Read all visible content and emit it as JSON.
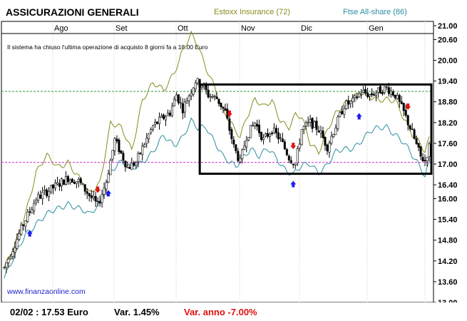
{
  "chart_data": {
    "type": "candlestick",
    "title": "ASSICURAZIONI GENERALI",
    "legend": [
      {
        "name": "Estoxx Insurance (72)",
        "color": "#8a8a1e"
      },
      {
        "name": "Ftse All-share (86)",
        "color": "#2b8ea0"
      }
    ],
    "note": "Il sistema ha chiuso l'ultima operazione di acquisto 8 giorni fa a 18.00 Euro",
    "watermark": "www.finanzaonline.com",
    "y_ticks": [
      "21.00",
      "20.60",
      "20.00",
      "19.40",
      "18.80",
      "18.20",
      "17.60",
      "17.00",
      "16.40",
      "16.00",
      "15.40",
      "14.80",
      "14.20",
      "13.60",
      "13.00"
    ],
    "ylim": [
      13.0,
      21.0
    ],
    "months": [
      "Ago",
      "Set",
      "Ott",
      "Nov",
      "Dic",
      "Gen"
    ],
    "reference_lines": [
      {
        "value": 19.1,
        "color": "#2f9a2f"
      },
      {
        "value": 17.05,
        "color": "#d12ad1"
      }
    ],
    "highlight_box": {
      "from_day": 92,
      "to_day": 200,
      "low": 16.72,
      "high": 19.3
    },
    "markers": [
      {
        "day": 12,
        "dir": "up",
        "color": "#1d1df0"
      },
      {
        "day": 44,
        "dir": "down",
        "color": "#e01010"
      },
      {
        "day": 49,
        "dir": "up",
        "color": "#1d1df0"
      },
      {
        "day": 106,
        "dir": "down",
        "color": "#e01010"
      },
      {
        "day": 136,
        "dir": "down",
        "color": "#e01010"
      },
      {
        "day": 136,
        "dir": "up",
        "color": "#1d1df0"
      },
      {
        "day": 167,
        "dir": "up",
        "color": "#1d1df0"
      },
      {
        "day": 190,
        "dir": "down",
        "color": "#e01010"
      }
    ],
    "price_keys": [
      [
        0,
        14.0
      ],
      [
        5,
        14.7
      ],
      [
        10,
        15.4
      ],
      [
        15,
        16.0
      ],
      [
        20,
        16.2
      ],
      [
        25,
        16.4
      ],
      [
        30,
        16.6
      ],
      [
        35,
        16.5
      ],
      [
        40,
        16.1
      ],
      [
        44,
        15.8
      ],
      [
        48,
        16.5
      ],
      [
        52,
        17.7
      ],
      [
        55,
        17.3
      ],
      [
        58,
        16.9
      ],
      [
        62,
        17.05
      ],
      [
        66,
        17.6
      ],
      [
        70,
        18.1
      ],
      [
        74,
        18.3
      ],
      [
        78,
        18.5
      ],
      [
        81,
        19.0
      ],
      [
        84,
        18.6
      ],
      [
        87,
        19.0
      ],
      [
        90,
        19.4
      ],
      [
        93,
        19.3
      ],
      [
        96,
        19.0
      ],
      [
        100,
        18.9
      ],
      [
        104,
        18.5
      ],
      [
        108,
        17.5
      ],
      [
        111,
        17.05
      ],
      [
        114,
        17.8
      ],
      [
        118,
        18.2
      ],
      [
        122,
        17.7
      ],
      [
        126,
        18.0
      ],
      [
        130,
        17.7
      ],
      [
        134,
        17.2
      ],
      [
        137,
        17.0
      ],
      [
        140,
        18.0
      ],
      [
        144,
        18.2
      ],
      [
        148,
        18.0
      ],
      [
        152,
        17.5
      ],
      [
        156,
        18.1
      ],
      [
        160,
        18.7
      ],
      [
        164,
        18.8
      ],
      [
        168,
        19.1
      ],
      [
        172,
        19.0
      ],
      [
        176,
        19.1
      ],
      [
        180,
        19.2
      ],
      [
        184,
        19.0
      ],
      [
        188,
        18.5
      ],
      [
        192,
        17.9
      ],
      [
        196,
        17.2
      ],
      [
        198,
        17.1
      ],
      [
        200,
        17.5
      ]
    ],
    "estoxx_keys": [
      [
        0,
        14.0
      ],
      [
        5,
        14.6
      ],
      [
        10,
        15.6
      ],
      [
        15,
        16.8
      ],
      [
        20,
        17.2
      ],
      [
        25,
        16.9
      ],
      [
        30,
        17.1
      ],
      [
        35,
        16.6
      ],
      [
        40,
        16.1
      ],
      [
        45,
        16.5
      ],
      [
        50,
        18.2
      ],
      [
        55,
        18.0
      ],
      [
        60,
        17.4
      ],
      [
        65,
        18.9
      ],
      [
        70,
        19.3
      ],
      [
        75,
        19.1
      ],
      [
        80,
        19.7
      ],
      [
        84,
        20.3
      ],
      [
        88,
        20.7
      ],
      [
        91,
        20.4
      ],
      [
        95,
        19.8
      ],
      [
        99,
        19.3
      ],
      [
        103,
        18.5
      ],
      [
        108,
        18.0
      ],
      [
        111,
        17.8
      ],
      [
        114,
        18.4
      ],
      [
        118,
        18.9
      ],
      [
        122,
        18.6
      ],
      [
        126,
        18.8
      ],
      [
        130,
        18.3
      ],
      [
        134,
        18.1
      ],
      [
        137,
        18.4
      ],
      [
        140,
        18.3
      ],
      [
        144,
        17.6
      ],
      [
        148,
        17.4
      ],
      [
        152,
        18.0
      ],
      [
        156,
        18.4
      ],
      [
        160,
        18.7
      ],
      [
        164,
        19.0
      ],
      [
        168,
        19.1
      ],
      [
        172,
        18.9
      ],
      [
        176,
        18.8
      ],
      [
        180,
        18.9
      ],
      [
        184,
        18.9
      ],
      [
        188,
        18.3
      ],
      [
        192,
        17.8
      ],
      [
        196,
        17.6
      ],
      [
        198,
        17.4
      ],
      [
        200,
        17.8
      ]
    ],
    "ftse_keys": [
      [
        0,
        13.7
      ],
      [
        5,
        14.3
      ],
      [
        10,
        15.0
      ],
      [
        15,
        15.3
      ],
      [
        20,
        15.5
      ],
      [
        25,
        15.7
      ],
      [
        30,
        15.9
      ],
      [
        35,
        15.7
      ],
      [
        40,
        15.5
      ],
      [
        45,
        15.9
      ],
      [
        50,
        16.8
      ],
      [
        55,
        17.0
      ],
      [
        60,
        16.9
      ],
      [
        65,
        17.1
      ],
      [
        70,
        17.3
      ],
      [
        75,
        17.8
      ],
      [
        80,
        17.6
      ],
      [
        84,
        17.8
      ],
      [
        88,
        18.2
      ],
      [
        91,
        18.0
      ],
      [
        95,
        18.1
      ],
      [
        99,
        17.7
      ],
      [
        103,
        17.2
      ],
      [
        106,
        17.0
      ],
      [
        109,
        16.9
      ],
      [
        112,
        17.2
      ],
      [
        116,
        17.5
      ],
      [
        120,
        17.2
      ],
      [
        124,
        17.4
      ],
      [
        128,
        17.2
      ],
      [
        132,
        16.9
      ],
      [
        136,
        16.7
      ],
      [
        140,
        16.9
      ],
      [
        144,
        17.0
      ],
      [
        148,
        16.8
      ],
      [
        152,
        17.0
      ],
      [
        156,
        17.3
      ],
      [
        160,
        17.4
      ],
      [
        164,
        17.5
      ],
      [
        168,
        17.7
      ],
      [
        172,
        17.9
      ],
      [
        176,
        18.0
      ],
      [
        180,
        18.1
      ],
      [
        184,
        17.9
      ],
      [
        188,
        17.6
      ],
      [
        192,
        17.2
      ],
      [
        196,
        16.9
      ],
      [
        198,
        16.7
      ],
      [
        200,
        17.1
      ]
    ]
  },
  "footer": {
    "date_price": "02/02 : 17.53 Euro",
    "var": "Var. 1.45%",
    "var_anno": "Var. anno -7.00%"
  }
}
